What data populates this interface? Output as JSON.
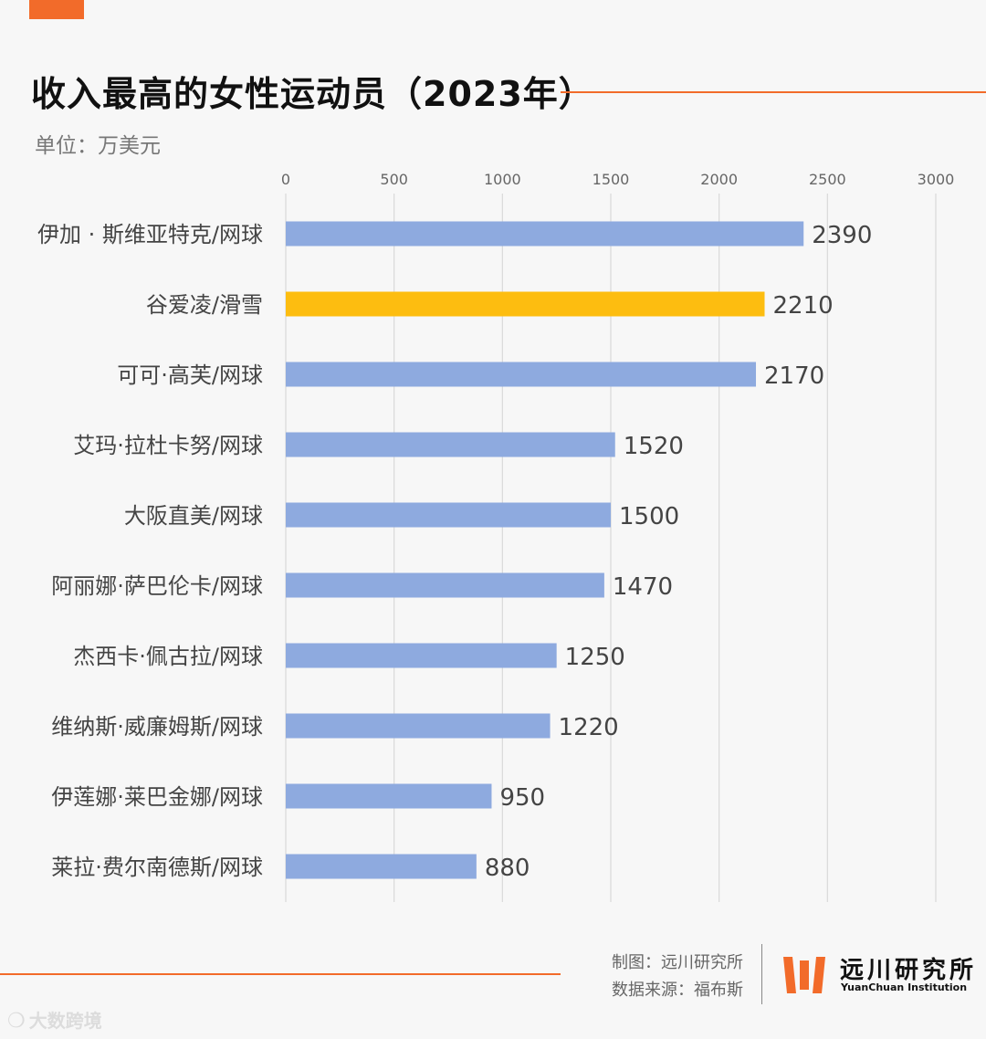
{
  "title": "收入最高的女性运动员（2023年）",
  "subtitle": "单位：万美元",
  "colors": {
    "accent": "#f26b2a",
    "bar": "#8eaadf",
    "highlight": "#fdbd10",
    "grid": "#d9d9d9"
  },
  "chart_data": {
    "type": "bar",
    "orientation": "horizontal",
    "title": "收入最高的女性运动员（2023年）",
    "unit": "万美元",
    "xlim": [
      0,
      3000
    ],
    "ticks": [
      0,
      500,
      1000,
      1500,
      2000,
      2500,
      3000
    ],
    "tick_labels": [
      "0",
      "500",
      "1000",
      "1500",
      "2000",
      "2500",
      "3000"
    ],
    "grid": true,
    "categories": [
      "伊加 · 斯维亚特克/网球",
      "谷爱凌/滑雪",
      "可可·高芙/网球",
      "艾玛·拉杜卡努/网球",
      "大阪直美/网球",
      "阿丽娜·萨巴伦卡/网球",
      "杰西卡·佩古拉/网球",
      "维纳斯·威廉姆斯/网球",
      "伊莲娜·莱巴金娜/网球",
      "莱拉·费尔南德斯/网球"
    ],
    "values": [
      2390,
      2210,
      2170,
      1520,
      1500,
      1470,
      1250,
      1220,
      950,
      880
    ],
    "highlight_index": 1
  },
  "footer": {
    "credit_line1": "制图：远川研究所",
    "credit_line2": "数据来源：福布斯",
    "logo_cn": "远川研究所",
    "logo_en": "YuanChuan Institution",
    "watermark_text": "大数跨境",
    "watermark_icon": "chat-bubble-icon"
  }
}
